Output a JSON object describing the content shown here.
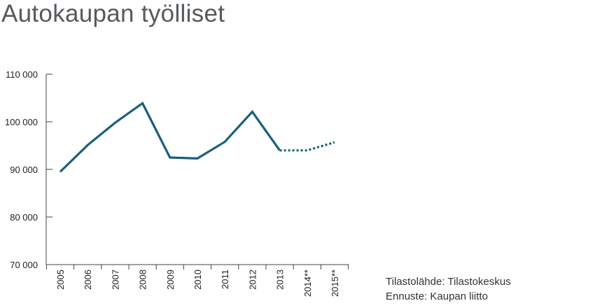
{
  "title": "Autokaupan työlliset",
  "source": {
    "line1": "Tilastolähde: Tilastokeskus",
    "line2": "Ennuste: Kaupan liitto"
  },
  "colors": {
    "series": "#1a5f7a",
    "axis": "#444444",
    "title": "#555a5f"
  },
  "chart_data": {
    "type": "line",
    "title": "Autokaupan työlliset",
    "categories": [
      "2005",
      "2006",
      "2007",
      "2008",
      "2009",
      "2010",
      "2011",
      "2012",
      "2013",
      "2014**",
      "2015**"
    ],
    "series": [
      {
        "values": [
          89500,
          95100,
          99800,
          103900,
          92500,
          92300,
          95800,
          102100,
          94000,
          94000,
          95700
        ],
        "actual_through": "2013",
        "forecast_style": "dotted"
      }
    ],
    "yticks": [
      70000,
      80000,
      90000,
      100000,
      110000
    ],
    "ytick_labels": [
      "70 000",
      "80 000",
      "90 000",
      "100 000",
      "110 000"
    ],
    "ylim": [
      70000,
      110000
    ],
    "xlabel": "",
    "ylabel": "",
    "grid": false,
    "legend": "none"
  }
}
